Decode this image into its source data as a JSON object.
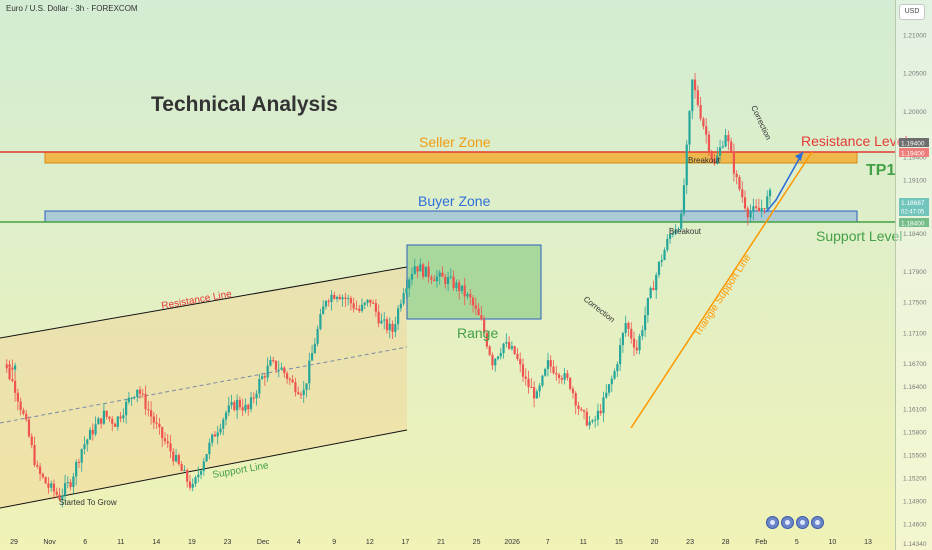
{
  "header": {
    "symbol": "Euro / U.S. Dollar · 3h · FOREXCOM",
    "currency": "USD"
  },
  "annotations": {
    "title": "Technical Analysis",
    "seller_zone": "Seller Zone",
    "buyer_zone": "Buyer Zone",
    "resistance_level": "Resistance Level",
    "support_level": "Support Level",
    "tp1": "TP1",
    "range": "Range",
    "resistance_line": "Resistance Line",
    "support_line": "Support Line",
    "started_to_grow": "Started To Grow",
    "triangle_support_line": "Triangle Support Line",
    "correction_1": "Correction",
    "correction_2": "Correction",
    "breakout_1": "Breakout",
    "breakout_2": "Breakout"
  },
  "price_badges": [
    "1.19400",
    "1.19400",
    "1.18687",
    "02:47:05",
    "1.18400"
  ],
  "colors": {
    "up_candle": "#26a69a",
    "down_candle": "#ef5350",
    "seller_zone": "#f5a623",
    "buyer_zone": "#4a7fd4",
    "resistance_line": "#e53935",
    "support_line": "#43a047",
    "triangle_line": "#ff9800",
    "projection_arrow": "#2f6fd8",
    "range_box": "#7cc47a"
  },
  "nav_icons": [
    "zoom-out-icon",
    "zoom-in-icon",
    "scroll-right-icon",
    "reset-icon"
  ],
  "chart_data": {
    "type": "candlestick",
    "title": "",
    "xlabel": "",
    "ylabel": "",
    "ylim": [
      1.1425,
      1.2145
    ],
    "y_ticks": [
      "1.21000",
      "1.20500",
      "1.20000",
      "1.19400",
      "1.19100",
      "1.18687",
      "1.18400",
      "1.17900",
      "1.17500",
      "1.17100",
      "1.16700",
      "1.16400",
      "1.16100",
      "1.15800",
      "1.15500",
      "1.15200",
      "1.14900",
      "1.14600",
      "1.14340"
    ],
    "x_ticks": [
      "29",
      "Nov",
      "6",
      "11",
      "14",
      "19",
      "23",
      "Dec",
      "4",
      "9",
      "12",
      "17",
      "21",
      "25",
      "2026",
      "7",
      "11",
      "15",
      "20",
      "23",
      "28",
      "Feb",
      "5",
      "10",
      "13"
    ],
    "series": [
      {
        "values": [
          1.1668,
          1.1638,
          1.1588,
          1.1528,
          1.1508,
          1.1495,
          1.1515,
          1.1558,
          1.1582,
          1.1602,
          1.1592,
          1.1615,
          1.1638,
          1.1608,
          1.1578,
          1.1555,
          1.1528,
          1.1505,
          1.1545,
          1.1578,
          1.1605,
          1.1618,
          1.1608,
          1.1645,
          1.1668,
          1.1662,
          1.1642,
          1.1632,
          1.1698,
          1.1755,
          1.1762,
          1.1752,
          1.1738,
          1.1752,
          1.1722,
          1.1712,
          1.1768,
          1.1798,
          1.1788,
          1.1782,
          1.1778,
          1.1768,
          1.1752,
          1.1722,
          1.1672,
          1.1695,
          1.1682,
          1.1645,
          1.1625,
          1.1668,
          1.1658,
          1.1642,
          1.1602,
          1.1588,
          1.1618,
          1.1658,
          1.1722,
          1.1688,
          1.1748,
          1.1798,
          1.1838,
          1.1858,
          1.2038,
          1.1982,
          1.1928,
          1.1972,
          1.1908,
          1.1868,
          1.1868,
          1.1889
        ]
      }
    ],
    "levels": [
      {
        "name": "Resistance Level",
        "value": 1.194
      },
      {
        "name": "Support Level",
        "value": 1.184
      }
    ],
    "zones": [
      {
        "name": "Seller Zone",
        "from": 1.193,
        "to": 1.1945
      },
      {
        "name": "Buyer Zone",
        "from": 1.1845,
        "to": 1.186
      }
    ],
    "grid": false
  }
}
